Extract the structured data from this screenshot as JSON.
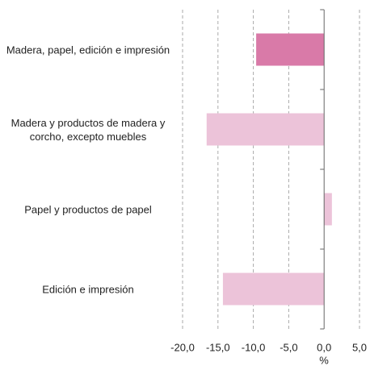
{
  "chart_data": {
    "type": "bar",
    "orientation": "horizontal",
    "categories": [
      "Madera, papel, edición e impresión",
      "Madera y productos de madera y corcho, excepto muebles",
      "Papel y productos de papel",
      "Edición e impresión"
    ],
    "values": [
      -9.6,
      -16.6,
      1.1,
      -14.3
    ],
    "colors": [
      "#d97aa8",
      "#ecc3d9",
      "#ecc3d9",
      "#ecc3d9"
    ],
    "xlabel": "%",
    "xlim": [
      -20,
      5
    ],
    "xticks": [
      {
        "value": -20,
        "label": "-20,0"
      },
      {
        "value": -15,
        "label": "-15,0"
      },
      {
        "value": -10,
        "label": "-10,0"
      },
      {
        "value": -5,
        "label": "-5,0"
      },
      {
        "value": 0,
        "label": "0,0"
      },
      {
        "value": 5,
        "label": "5,0"
      }
    ],
    "grid": true
  }
}
